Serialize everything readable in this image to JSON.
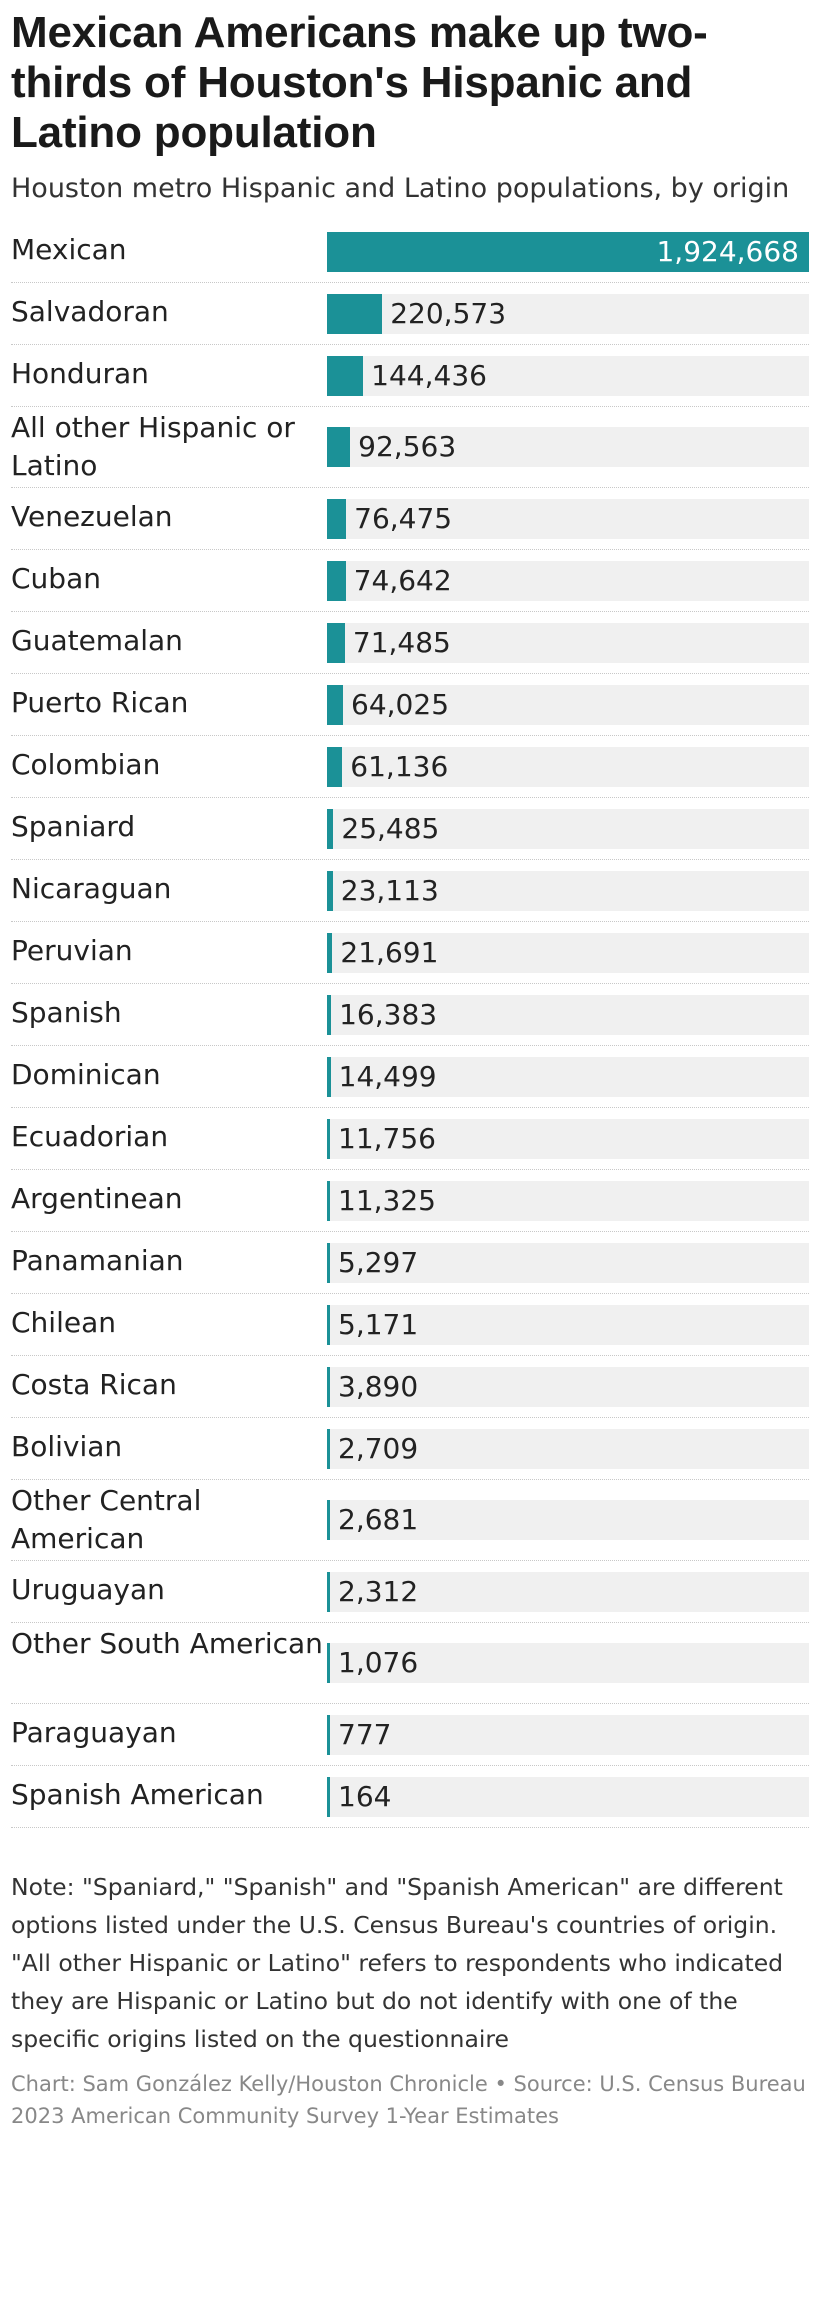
{
  "header": {
    "title": "Mexican Americans make up two-thirds of Houston's Hispanic and Latino population",
    "subtitle": "Houston metro Hispanic and Latino populations, by origin"
  },
  "colors": {
    "bar": "#1b9197",
    "track": "#f0f0f0"
  },
  "chart_data": {
    "type": "bar",
    "orientation": "horizontal",
    "title": "Mexican Americans make up two-thirds of Houston's Hispanic and Latino population",
    "subtitle": "Houston metro Hispanic and Latino populations, by origin",
    "xlim": [
      0,
      1924668
    ],
    "categories": [
      "Mexican",
      "Salvadoran",
      "Honduran",
      "All other Hispanic or Latino",
      "Venezuelan",
      "Cuban",
      "Guatemalan",
      "Puerto Rican",
      "Colombian",
      "Spaniard",
      "Nicaraguan",
      "Peruvian",
      "Spanish",
      "Dominican",
      "Ecuadorian",
      "Argentinean",
      "Panamanian",
      "Chilean",
      "Costa Rican",
      "Bolivian",
      "Other Central American",
      "Uruguayan",
      "Other South American",
      "Paraguayan",
      "Spanish American"
    ],
    "values": [
      1924668,
      220573,
      144436,
      92563,
      76475,
      74642,
      71485,
      64025,
      61136,
      25485,
      23113,
      21691,
      16383,
      14499,
      11756,
      11325,
      5297,
      5171,
      3890,
      2709,
      2681,
      2312,
      1076,
      777,
      164
    ],
    "labels": [
      "1,924,668",
      "220,573",
      "144,436",
      "92,563",
      "76,475",
      "74,642",
      "71,485",
      "64,025",
      "61,136",
      "25,485",
      "23,113",
      "21,691",
      "16,383",
      "14,499",
      "11,756",
      "11,325",
      "5,297",
      "5,171",
      "3,890",
      "2,709",
      "2,681",
      "2,312",
      "1,076",
      "777",
      "164"
    ]
  },
  "footer": {
    "note": "Note: \"Spaniard,\" \"Spanish\" and \"Spanish American\" are different options listed under the U.S. Census Bureau's countries of origin. \"All other Hispanic or Latino\" refers to respondents who indicated they are Hispanic or Latino but do not identify with one of the specific origins listed on the questionnaire",
    "source": "Chart: Sam González Kelly/Houston Chronicle • Source: U.S. Census Bureau 2023 American Community Survey 1-Year Estimates"
  }
}
